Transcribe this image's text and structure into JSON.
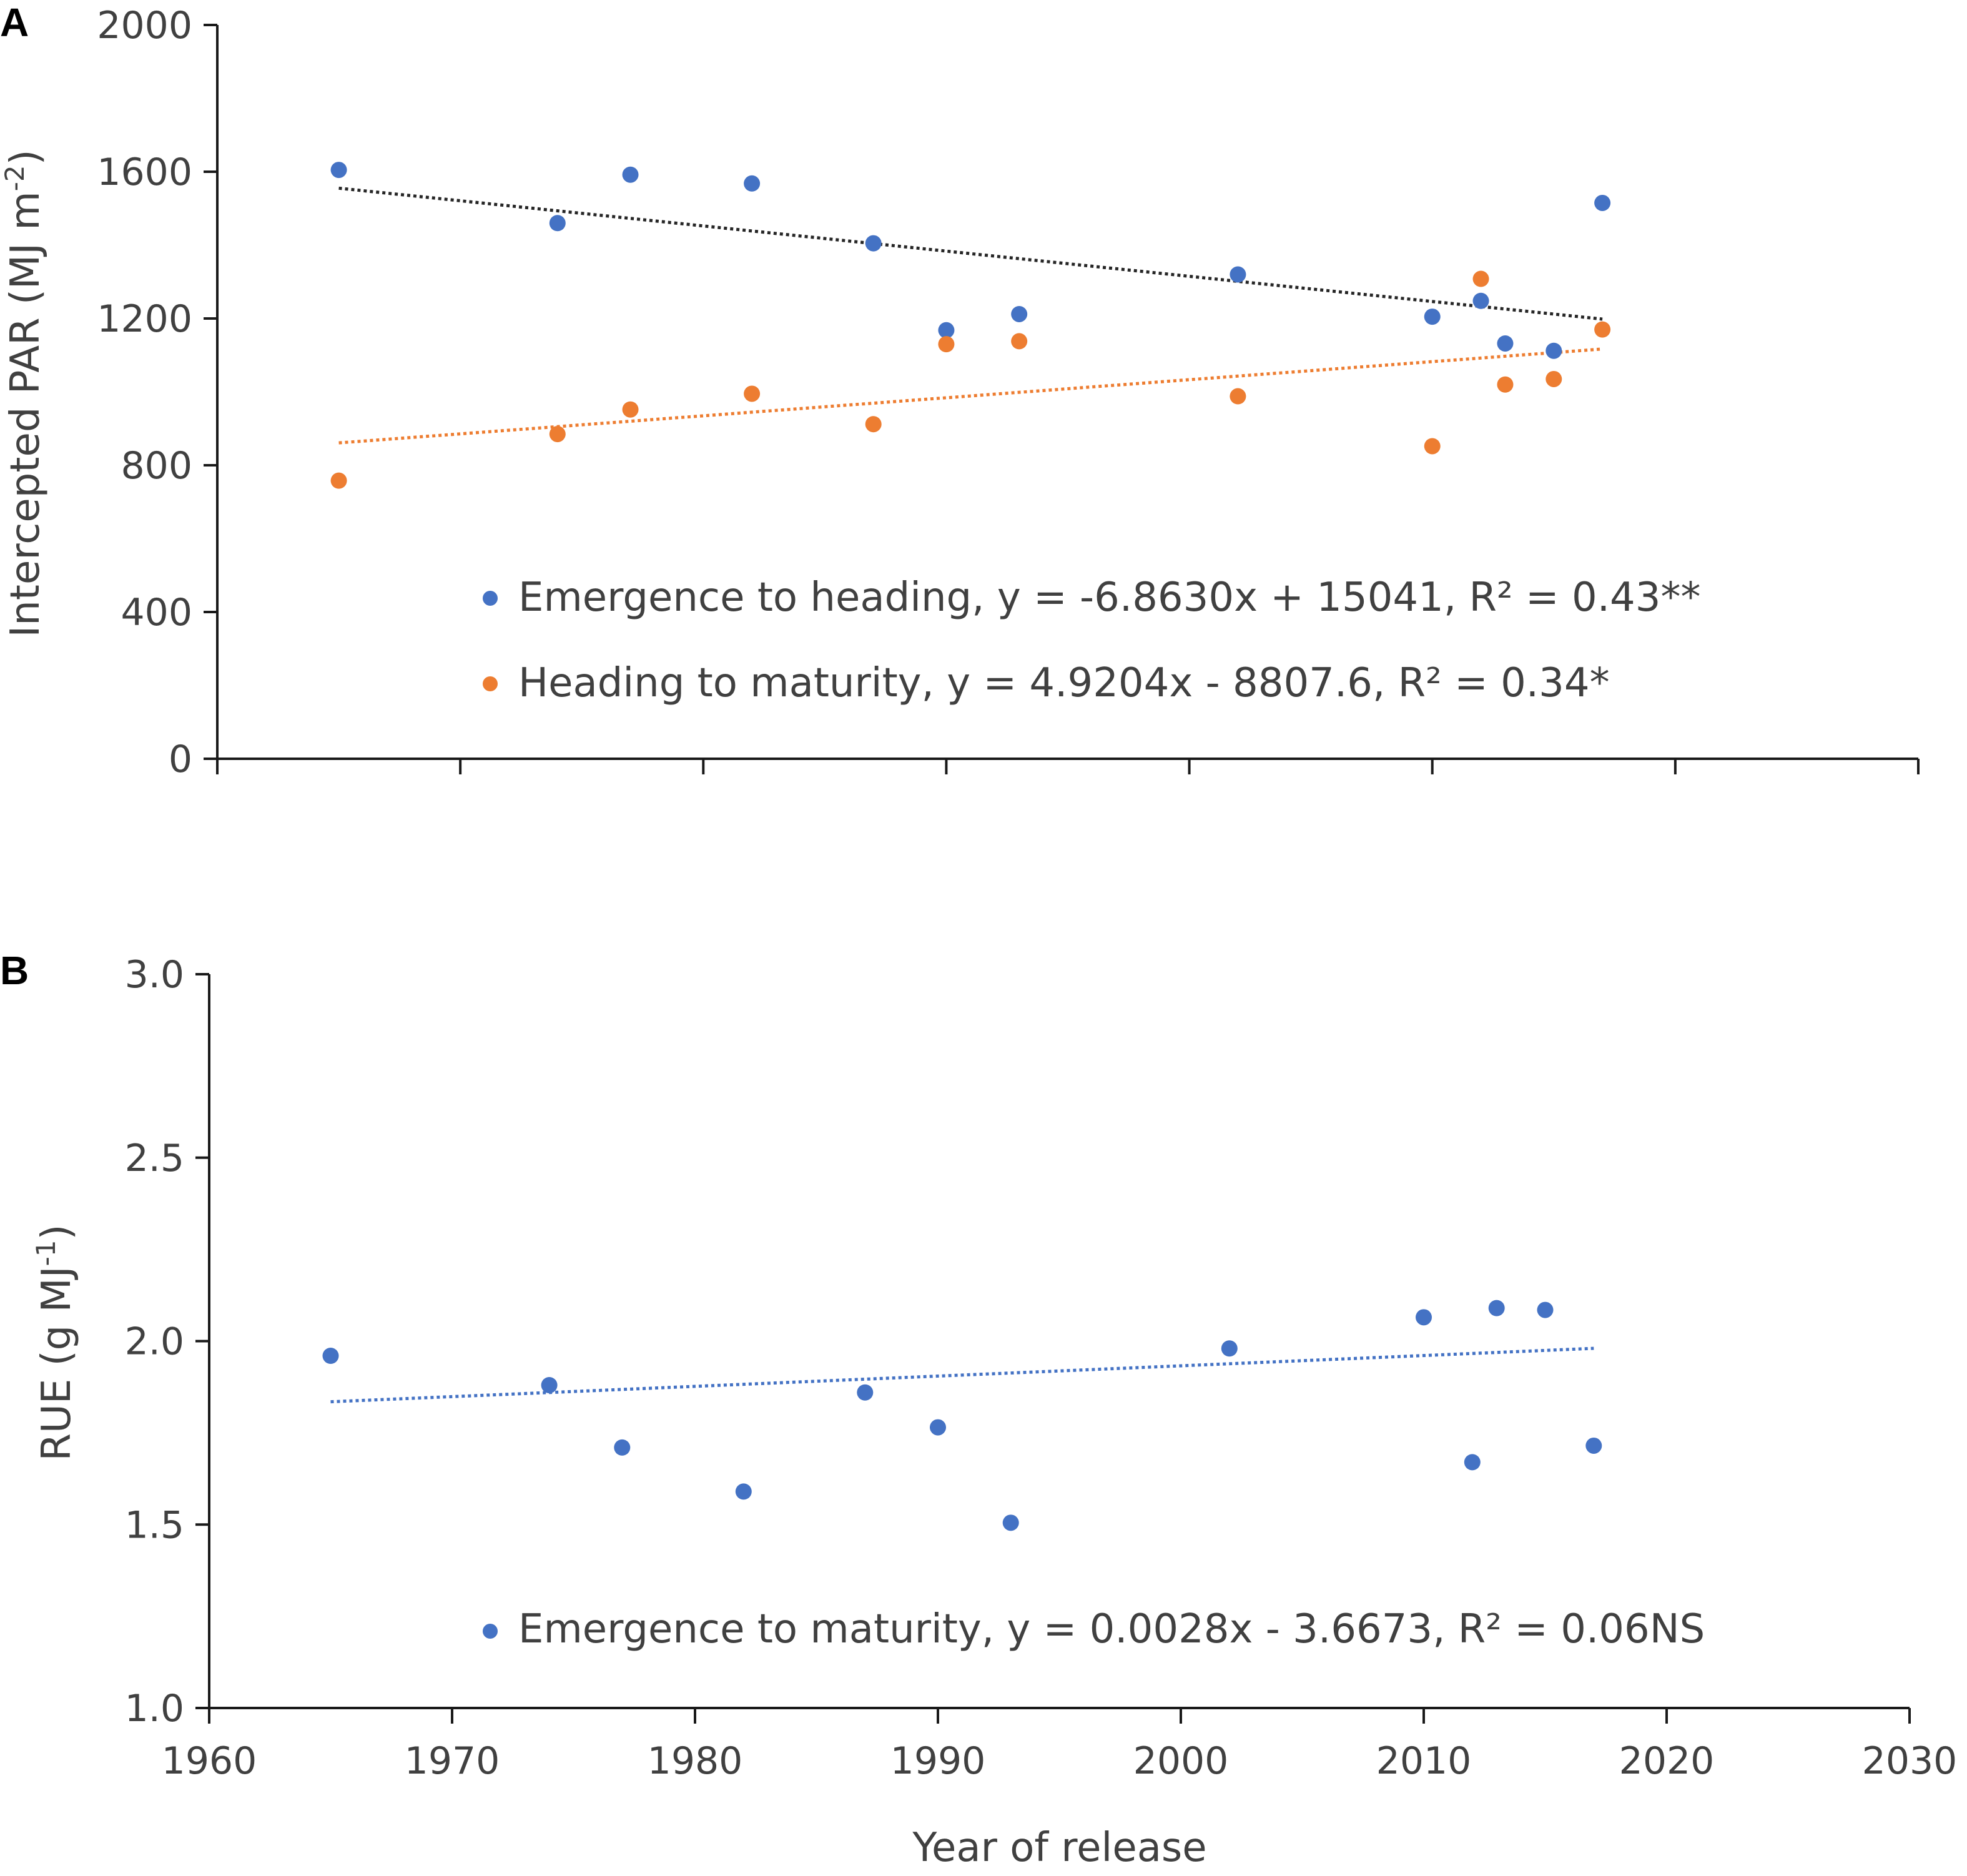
{
  "chart_data": [
    {
      "panel": "A",
      "type": "scatter",
      "ylabel": "Intercepted PAR (MJ m-2)",
      "ylabel_main": "Intercepted PAR (MJ m",
      "ylabel_sup": "-2",
      "ylabel_end": ")",
      "xlabel": "",
      "xlim": [
        1960,
        2030
      ],
      "ylim": [
        0,
        2000
      ],
      "yticks": [
        "0",
        "400",
        "800",
        "1200",
        "1600",
        "2000"
      ],
      "series": [
        {
          "name": "Emergence to heading",
          "color": "#4472C4",
          "trend_color": "#262626",
          "legend_text": "Emergence to heading, y = -6.8630x + 15041, R² = 0.43**",
          "slope": -6.863,
          "intercept": 15041,
          "trend_x": [
            1965,
            2017
          ],
          "x": [
            1965,
            1974,
            1977,
            1982,
            1987,
            1990,
            1993,
            2002,
            2010,
            2012,
            2013,
            2015,
            2017
          ],
          "y": [
            1605,
            1460,
            1592,
            1568,
            1405,
            1168,
            1212,
            1320,
            1205,
            1248,
            1132,
            1112,
            1515
          ]
        },
        {
          "name": "Heading to maturity",
          "color": "#ED7D31",
          "trend_color": "#ED7D31",
          "legend_text": "Heading to maturity, y = 4.9204x - 8807.6, R² = 0.34*",
          "slope": 4.9204,
          "intercept": -8807.6,
          "trend_x": [
            1965,
            2017
          ],
          "x": [
            1965,
            1974,
            1977,
            1982,
            1987,
            1990,
            1993,
            2002,
            2010,
            2012,
            2013,
            2015,
            2017
          ],
          "y": [
            758,
            885,
            952,
            995,
            912,
            1130,
            1138,
            988,
            852,
            1308,
            1020,
            1035,
            1170
          ]
        }
      ]
    },
    {
      "panel": "B",
      "type": "scatter",
      "ylabel": "RUE (g MJ-1)",
      "ylabel_main": "RUE (g MJ",
      "ylabel_sup": "-1",
      "ylabel_end": ")",
      "xlabel": "Year of release",
      "xlim": [
        1960,
        2030
      ],
      "ylim": [
        1.0,
        3.0
      ],
      "yticks": [
        "1.0",
        "1.5",
        "2.0",
        "2.5",
        "3.0"
      ],
      "xticks": [
        "1960",
        "1970",
        "1980",
        "1990",
        "2000",
        "2010",
        "2020",
        "2030"
      ],
      "series": [
        {
          "name": "Emergence to maturity",
          "color": "#4472C4",
          "trend_color": "#4472C4",
          "legend_text": "Emergence to maturity, y = 0.0028x - 3.6673, R² = 0.06NS",
          "slope": 0.0028,
          "intercept": -3.6673,
          "trend_x": [
            1965,
            2017
          ],
          "x": [
            1965,
            1974,
            1977,
            1982,
            1987,
            1990,
            1993,
            2002,
            2010,
            2012,
            2013,
            2015,
            2017
          ],
          "y": [
            1.96,
            1.88,
            1.71,
            1.59,
            1.86,
            1.765,
            1.505,
            1.98,
            2.065,
            1.67,
            2.09,
            2.085,
            1.715
          ]
        }
      ]
    }
  ]
}
